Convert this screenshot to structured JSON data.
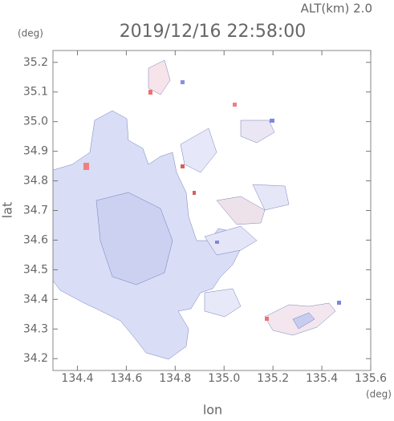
{
  "chart_data": {
    "type": "map",
    "title": "2019/12/16 22:58:00",
    "subtitle": "ALT(km) 2.0",
    "x_label": "lon",
    "x_unit": "(deg)",
    "y_label": "lat",
    "y_unit": "(deg)",
    "xlim": [
      134.3,
      135.6
    ],
    "xticks": [
      134.4,
      134.6,
      134.8,
      {
        "value": 135,
        "label": "135.0"
      },
      135.2,
      135.4,
      135.6
    ],
    "ylim": [
      34.16,
      35.24
    ],
    "yticks": [
      34.2,
      34.3,
      34.4,
      34.5,
      34.6,
      34.7,
      34.8,
      34.9,
      {
        "value": 35,
        "label": "35.0"
      },
      35.1,
      35.2
    ]
  }
}
